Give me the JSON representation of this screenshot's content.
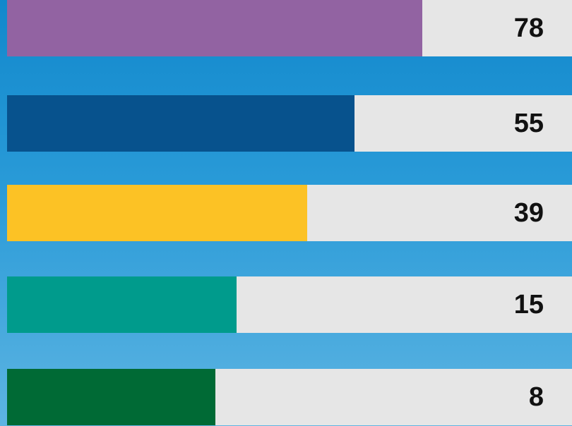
{
  "chart_data": {
    "type": "bar",
    "orientation": "horizontal",
    "values": [
      78,
      55,
      39,
      15,
      8
    ],
    "colors": [
      "#9263a2",
      "#07528d",
      "#fcc225",
      "#009b8c",
      "#006a35"
    ],
    "track_color": "#e6e6e6",
    "background": "#1a90d0"
  }
}
